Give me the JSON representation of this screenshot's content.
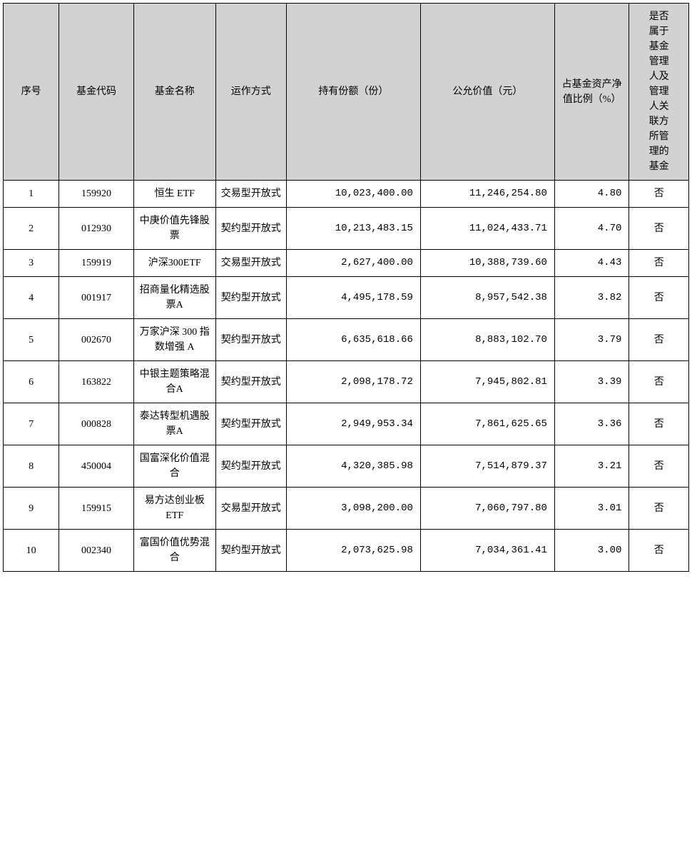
{
  "table": {
    "columns": [
      "序号",
      "基金代码",
      "基金名称",
      "运作方式",
      "持有份额（份）",
      "公允价值（元）",
      "占基金资产净值比例（%）",
      "是否属于基金管理人及管理人关联方所管理的基金"
    ],
    "rows": [
      {
        "seq": "1",
        "code": "159920",
        "name": "恒生 ETF",
        "mode": "交易型开放式",
        "shares": "10,023,400.00",
        "value": "11,246,254.80",
        "ratio": "4.80",
        "related": "否"
      },
      {
        "seq": "2",
        "code": "012930",
        "name": "中庚价值先锋股票",
        "mode": "契约型开放式",
        "shares": "10,213,483.15",
        "value": "11,024,433.71",
        "ratio": "4.70",
        "related": "否"
      },
      {
        "seq": "3",
        "code": "159919",
        "name": "沪深300ETF",
        "mode": "交易型开放式",
        "shares": "2,627,400.00",
        "value": "10,388,739.60",
        "ratio": "4.43",
        "related": "否"
      },
      {
        "seq": "4",
        "code": "001917",
        "name": "招商量化精选股票A",
        "mode": "契约型开放式",
        "shares": "4,495,178.59",
        "value": "8,957,542.38",
        "ratio": "3.82",
        "related": "否"
      },
      {
        "seq": "5",
        "code": "002670",
        "name": "万家沪深 300 指数增强 A",
        "mode": "契约型开放式",
        "shares": "6,635,618.66",
        "value": "8,883,102.70",
        "ratio": "3.79",
        "related": "否"
      },
      {
        "seq": "6",
        "code": "163822",
        "name": "中银主题策略混合A",
        "mode": "契约型开放式",
        "shares": "2,098,178.72",
        "value": "7,945,802.81",
        "ratio": "3.39",
        "related": "否"
      },
      {
        "seq": "7",
        "code": "000828",
        "name": "泰达转型机遇股票A",
        "mode": "契约型开放式",
        "shares": "2,949,953.34",
        "value": "7,861,625.65",
        "ratio": "3.36",
        "related": "否"
      },
      {
        "seq": "8",
        "code": "450004",
        "name": "国富深化价值混合",
        "mode": "契约型开放式",
        "shares": "4,320,385.98",
        "value": "7,514,879.37",
        "ratio": "3.21",
        "related": "否"
      },
      {
        "seq": "9",
        "code": "159915",
        "name": "易方达创业板 ETF",
        "mode": "交易型开放式",
        "shares": "3,098,200.00",
        "value": "7,060,797.80",
        "ratio": "3.01",
        "related": "否"
      },
      {
        "seq": "10",
        "code": "002340",
        "name": "富国价值优势混合",
        "mode": "契约型开放式",
        "shares": "2,073,625.98",
        "value": "7,034,361.41",
        "ratio": "3.00",
        "related": "否"
      }
    ],
    "header_bg": "#d2d2d2",
    "border_color": "#000000",
    "body_bg": "#ffffff"
  }
}
